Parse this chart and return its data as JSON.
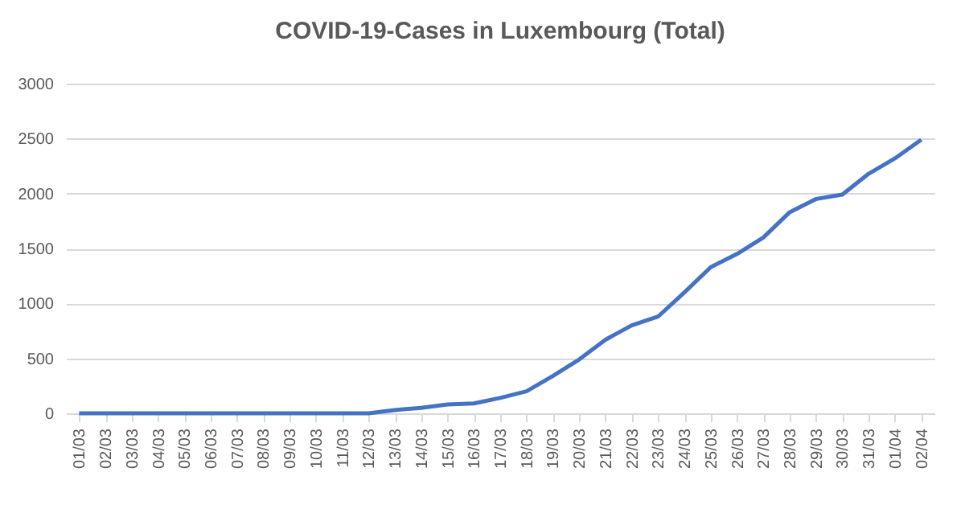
{
  "chart_data": {
    "type": "line",
    "title": "COVID-19-Cases in Luxembourg (Total)",
    "categories": [
      "01/03",
      "02/03",
      "03/03",
      "04/03",
      "05/03",
      "06/03",
      "07/03",
      "08/03",
      "09/03",
      "10/03",
      "11/03",
      "12/03",
      "13/03",
      "14/03",
      "15/03",
      "16/03",
      "17/03",
      "18/03",
      "19/03",
      "20/03",
      "21/03",
      "22/03",
      "23/03",
      "24/03",
      "25/03",
      "26/03",
      "27/03",
      "28/03",
      "29/03",
      "30/03",
      "31/03",
      "01/04",
      "02/04"
    ],
    "series": [
      {
        "color": "#4472c4",
        "values": [
          0,
          0,
          0,
          0,
          0,
          0,
          0,
          0,
          0,
          0,
          0,
          0,
          30,
          50,
          80,
          90,
          140,
          200,
          340,
          490,
          670,
          800,
          880,
          1100,
          1330,
          1450,
          1600,
          1830,
          1950,
          1990,
          2180,
          2320,
          2490
        ]
      }
    ],
    "ylim": [
      0,
      3000
    ],
    "yticks": [
      0,
      500,
      1000,
      1500,
      2000,
      2500,
      3000
    ],
    "grid": "y",
    "legend": false,
    "marker": "none",
    "line_style": "solid"
  }
}
